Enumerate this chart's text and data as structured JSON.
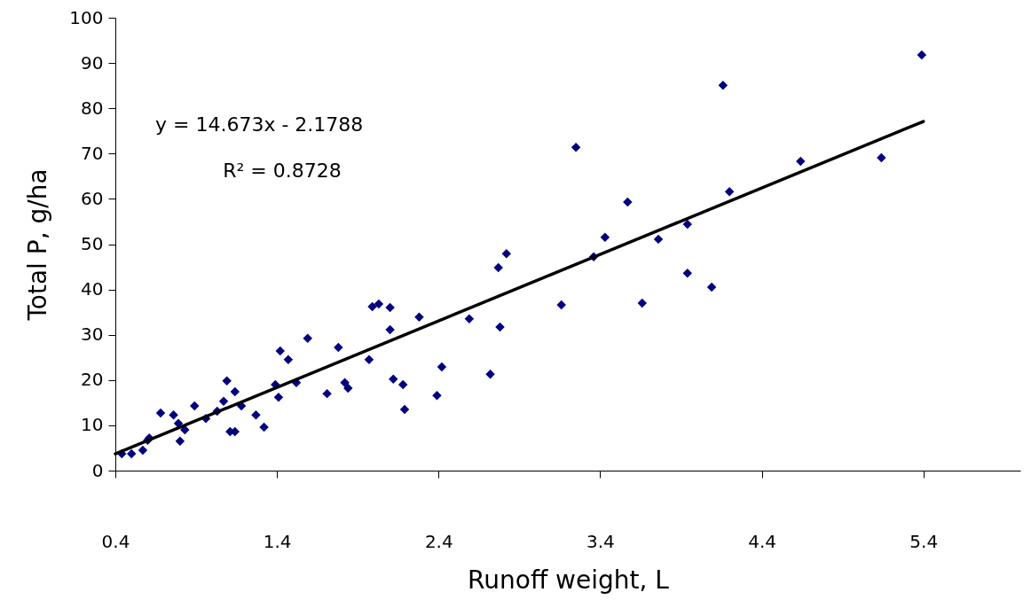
{
  "chart_data": {
    "type": "scatter",
    "xlabel": "Runoff weight, L",
    "ylabel": "Total P, g/ha",
    "annotations": [
      "y = 14.673x - 2.1788",
      "R² = 0.8728"
    ],
    "xlim": [
      0.4,
      6.0
    ],
    "xticks": [
      0.4,
      1.4,
      2.4,
      3.4,
      4.4,
      5.4
    ],
    "ylim": [
      0,
      100
    ],
    "yticks": [
      0,
      10,
      20,
      30,
      40,
      50,
      60,
      70,
      80,
      90,
      100
    ],
    "marker": "diamond",
    "series": [
      {
        "color": "#000080",
        "x": [
          0.44,
          0.5,
          0.57,
          0.6,
          0.61,
          0.68,
          0.76,
          0.79,
          0.8,
          0.83,
          0.89,
          0.96,
          1.03,
          1.07,
          1.09,
          1.11,
          1.14,
          1.14,
          1.18,
          1.27,
          1.32,
          1.39,
          1.41,
          1.42,
          1.47,
          1.52,
          1.59,
          1.71,
          1.78,
          1.82,
          1.84,
          1.97,
          1.99,
          2.03,
          2.1,
          2.1,
          2.12,
          2.18,
          2.19,
          2.28,
          2.39,
          2.42,
          2.59,
          2.72,
          2.77,
          2.78,
          2.82,
          3.16,
          3.25,
          3.36,
          3.43,
          3.57,
          3.66,
          3.76,
          3.94,
          3.94,
          4.09,
          4.16,
          4.2,
          4.64,
          5.14,
          5.39
        ],
        "values": [
          3.7,
          3.7,
          4.5,
          6.7,
          7.2,
          12.7,
          12.3,
          10.4,
          6.5,
          9.0,
          14.3,
          11.5,
          13.1,
          15.3,
          19.8,
          8.6,
          17.4,
          8.6,
          14.3,
          12.3,
          9.6,
          19.0,
          16.2,
          26.4,
          24.5,
          19.4,
          29.2,
          17.0,
          27.2,
          19.4,
          18.2,
          24.5,
          36.2,
          36.8,
          36.0,
          31.1,
          20.2,
          19.0,
          13.5,
          33.9,
          16.6,
          22.9,
          33.5,
          21.3,
          44.8,
          31.7,
          47.9,
          36.6,
          71.4,
          47.2,
          51.5,
          59.3,
          37.0,
          51.1,
          54.4,
          43.6,
          40.5,
          85.1,
          61.6,
          68.3,
          69.1,
          91.8
        ]
      },
      {
        "type": "line",
        "marker": "none",
        "color": "#000000",
        "x": [
          0.4,
          5.4
        ],
        "values": [
          3.7,
          77.1
        ]
      }
    ]
  }
}
